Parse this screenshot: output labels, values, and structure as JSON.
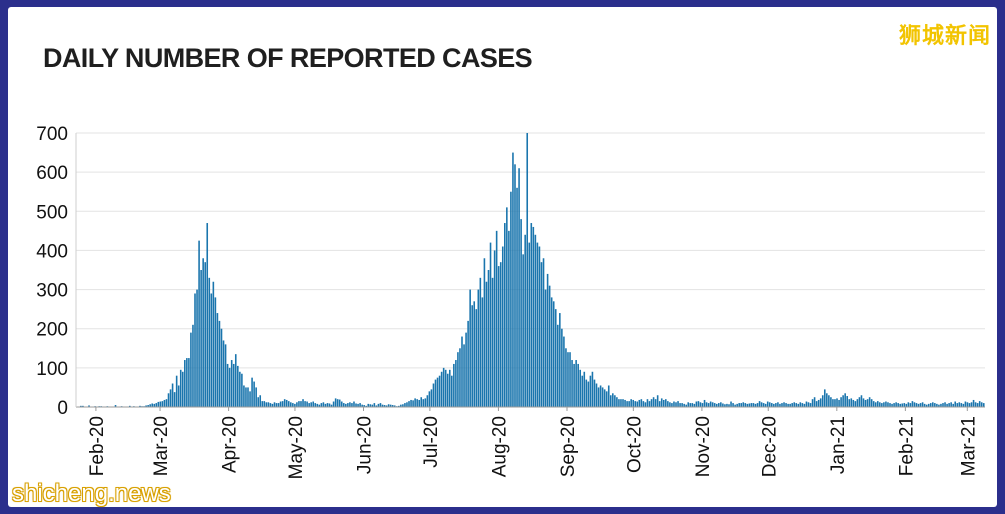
{
  "chart_data": {
    "type": "bar",
    "title": "DAILY NUMBER OF REPORTED CASES",
    "xlabel": "",
    "ylabel": "",
    "ylim": [
      0,
      700
    ],
    "yticks": [
      "0",
      "100",
      "200",
      "300",
      "400",
      "500",
      "600",
      "700"
    ],
    "xticks": [
      "Feb-20",
      "Mar-20",
      "Apr-20",
      "May-20",
      "Jun-20",
      "Jul-20",
      "Aug-20",
      "Sep-20",
      "Oct-20",
      "Nov-20",
      "Dec-20",
      "Jan-21",
      "Feb-21",
      "Mar-21"
    ],
    "x_start": "2020-01-23",
    "x_end": "2021-03-09",
    "grid": "horizontal",
    "legend": "none",
    "bar_color": "#1a75ad",
    "values": [
      1,
      0,
      3,
      3,
      1,
      0,
      4,
      0,
      0,
      2,
      1,
      2,
      2,
      0,
      1,
      2,
      0,
      0,
      1,
      5,
      1,
      0,
      2,
      0,
      1,
      0,
      3,
      0,
      2,
      0,
      0,
      3,
      2,
      2,
      4,
      5,
      7,
      9,
      8,
      10,
      13,
      14,
      15,
      18,
      20,
      35,
      45,
      60,
      38,
      80,
      55,
      95,
      90,
      120,
      125,
      125,
      190,
      210,
      290,
      300,
      425,
      350,
      380,
      370,
      470,
      330,
      290,
      320,
      280,
      240,
      220,
      200,
      170,
      160,
      110,
      100,
      120,
      110,
      135,
      105,
      90,
      85,
      55,
      50,
      50,
      40,
      75,
      65,
      50,
      25,
      30,
      15,
      15,
      12,
      12,
      10,
      8,
      12,
      10,
      10,
      14,
      15,
      20,
      18,
      15,
      12,
      10,
      8,
      12,
      15,
      15,
      20,
      15,
      14,
      10,
      12,
      14,
      10,
      8,
      6,
      10,
      12,
      8,
      10,
      9,
      6,
      14,
      22,
      20,
      19,
      14,
      10,
      8,
      10,
      12,
      10,
      14,
      9,
      8,
      10,
      6,
      5,
      3,
      8,
      7,
      6,
      10,
      4,
      8,
      10,
      6,
      5,
      4,
      7,
      6,
      5,
      4,
      2,
      3,
      6,
      7,
      10,
      12,
      15,
      18,
      17,
      22,
      20,
      18,
      25,
      20,
      22,
      30,
      40,
      45,
      60,
      70,
      75,
      80,
      90,
      100,
      95,
      85,
      95,
      80,
      110,
      120,
      140,
      150,
      180,
      160,
      190,
      220,
      300,
      260,
      270,
      250,
      300,
      330,
      280,
      380,
      320,
      350,
      420,
      330,
      400,
      450,
      360,
      370,
      410,
      470,
      510,
      450,
      550,
      650,
      620,
      560,
      610,
      480,
      390,
      440,
      700,
      420,
      470,
      460,
      440,
      420,
      410,
      370,
      380,
      300,
      340,
      310,
      280,
      270,
      250,
      210,
      240,
      200,
      180,
      150,
      140,
      140,
      120,
      110,
      120,
      110,
      95,
      80,
      90,
      70,
      65,
      80,
      90,
      70,
      60,
      50,
      55,
      50,
      45,
      40,
      55,
      30,
      35,
      30,
      25,
      20,
      20,
      20,
      18,
      15,
      15,
      20,
      18,
      15,
      14,
      18,
      20,
      15,
      12,
      20,
      15,
      20,
      25,
      20,
      30,
      15,
      22,
      18,
      20,
      15,
      12,
      10,
      14,
      12,
      15,
      10,
      10,
      8,
      6,
      12,
      10,
      10,
      8,
      14,
      15,
      12,
      10,
      18,
      12,
      10,
      14,
      12,
      10,
      8,
      10,
      12,
      9,
      7,
      8,
      7,
      14,
      10,
      6,
      8,
      10,
      10,
      12,
      10,
      8,
      9,
      10,
      10,
      8,
      10,
      15,
      12,
      10,
      8,
      14,
      12,
      10,
      8,
      10,
      12,
      8,
      10,
      12,
      10,
      8,
      8,
      10,
      12,
      10,
      8,
      12,
      10,
      8,
      14,
      12,
      10,
      20,
      25,
      15,
      18,
      22,
      30,
      45,
      35,
      30,
      25,
      20,
      20,
      22,
      18,
      25,
      30,
      35,
      28,
      20,
      22,
      18,
      15,
      20,
      25,
      30,
      22,
      18,
      20,
      25,
      20,
      15,
      12,
      15,
      12,
      10,
      12,
      14,
      12,
      10,
      8,
      10,
      12,
      10,
      8,
      9,
      10,
      8,
      12,
      10,
      15,
      12,
      10,
      8,
      10,
      12,
      8,
      6,
      8,
      10,
      12,
      10,
      8,
      6,
      8,
      10,
      12,
      8,
      10,
      12,
      8,
      14,
      10,
      12,
      10,
      8,
      14,
      12,
      10,
      12,
      18,
      12,
      10,
      15,
      12,
      10
    ]
  },
  "watermarks": {
    "top_right": "狮城新闻",
    "bottom_left": "shicheng.news"
  }
}
